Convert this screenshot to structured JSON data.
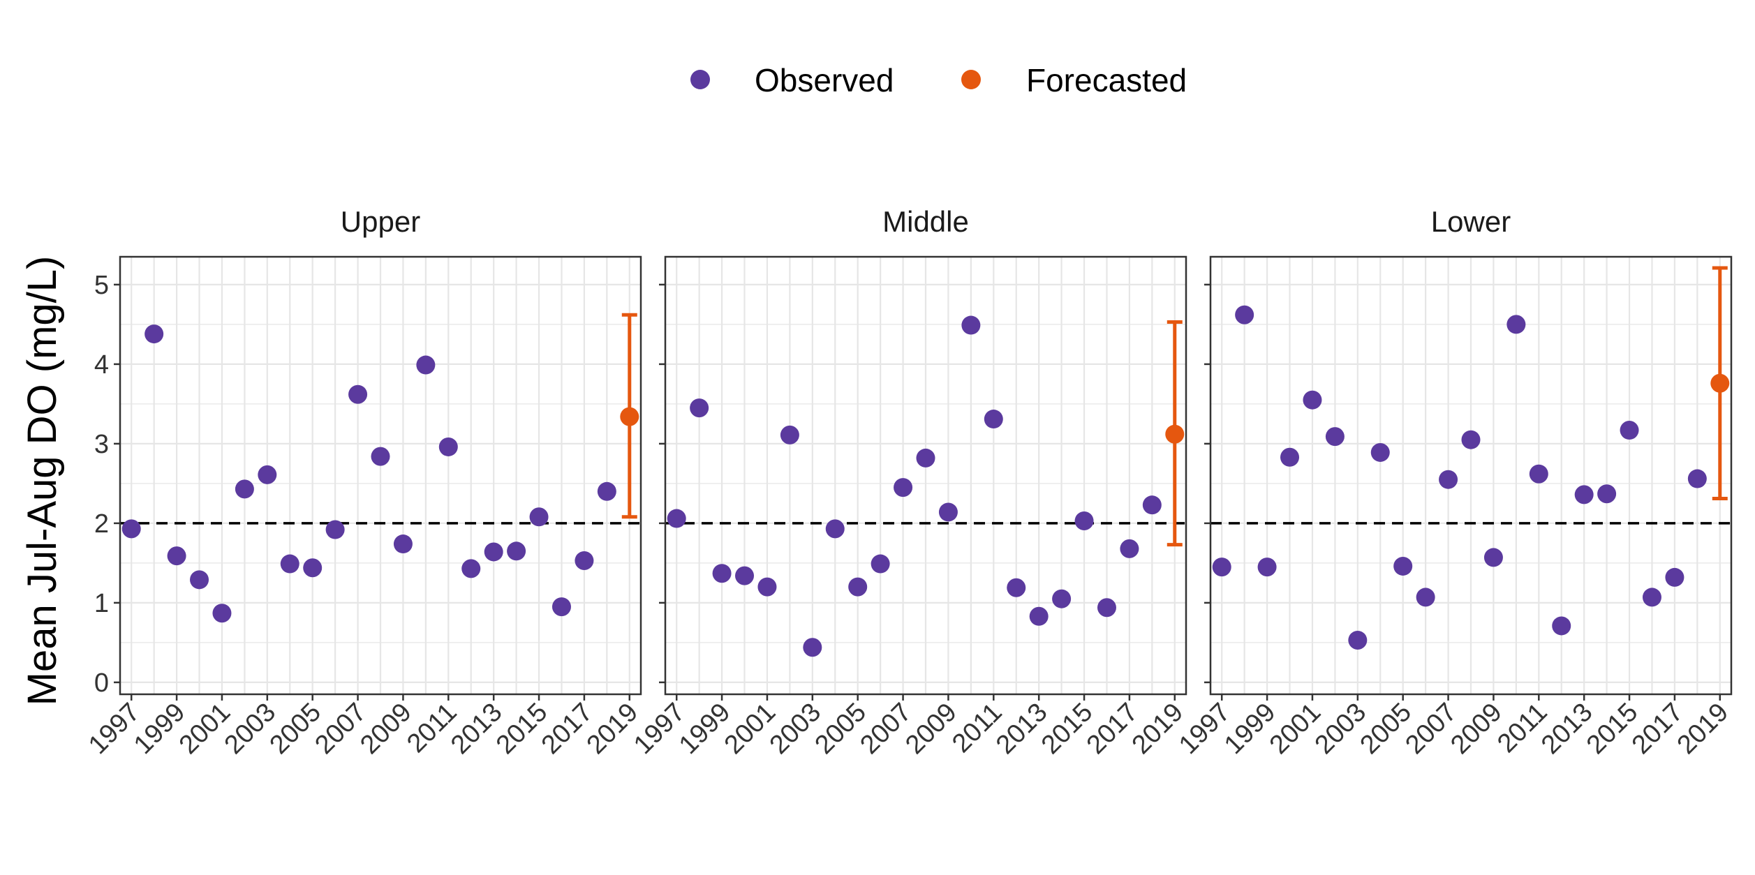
{
  "legend": {
    "observed_label": "Observed",
    "forecasted_label": "Forecasted"
  },
  "colors": {
    "observed": "#5b3a9e",
    "forecasted": "#e5570f",
    "threshold": "#000000",
    "grid": "#e6e6e6",
    "panel_border": "#333333"
  },
  "chart_data": {
    "type": "scatter",
    "ylabel": "Mean Jul-Aug DO (mg/L)",
    "xlabel": "",
    "ylim": [
      -0.15,
      5.35
    ],
    "y_ticks": [
      0,
      1,
      2,
      3,
      4,
      5
    ],
    "x_range": [
      1996.5,
      2019.5
    ],
    "x_tick_labels": [
      "1997",
      "1999",
      "2001",
      "2003",
      "2005",
      "2007",
      "2009",
      "2011",
      "2013",
      "2015",
      "2017",
      "2019"
    ],
    "threshold": 2,
    "grid": true,
    "legend_position": "top",
    "facets": [
      {
        "name": "Upper",
        "observed": {
          "x": [
            1997,
            1998,
            1999,
            2000,
            2001,
            2002,
            2003,
            2004,
            2005,
            2006,
            2007,
            2008,
            2009,
            2010,
            2011,
            2012,
            2013,
            2014,
            2015,
            2016,
            2017,
            2018
          ],
          "y": [
            1.93,
            4.38,
            1.59,
            1.29,
            0.87,
            2.43,
            2.61,
            1.49,
            1.44,
            1.92,
            3.62,
            2.84,
            1.74,
            3.99,
            2.96,
            1.43,
            1.64,
            1.65,
            2.08,
            0.95,
            1.53,
            2.4
          ]
        },
        "forecast": {
          "x": 2019,
          "y": 3.34,
          "lower": 2.08,
          "upper": 4.62
        }
      },
      {
        "name": "Middle",
        "observed": {
          "x": [
            1997,
            1998,
            1999,
            2000,
            2001,
            2002,
            2003,
            2004,
            2005,
            2006,
            2007,
            2008,
            2009,
            2010,
            2011,
            2012,
            2013,
            2014,
            2015,
            2016,
            2017,
            2018
          ],
          "y": [
            2.06,
            3.45,
            1.37,
            1.34,
            1.2,
            3.11,
            0.44,
            1.93,
            1.2,
            1.49,
            2.45,
            2.82,
            2.14,
            4.49,
            3.31,
            1.19,
            0.83,
            1.05,
            2.03,
            0.94,
            1.68,
            2.23
          ]
        },
        "forecast": {
          "x": 2019,
          "y": 3.12,
          "lower": 1.73,
          "upper": 4.53
        }
      },
      {
        "name": "Lower",
        "observed": {
          "x": [
            1997,
            1998,
            1999,
            2000,
            2001,
            2002,
            2003,
            2004,
            2005,
            2006,
            2007,
            2008,
            2009,
            2010,
            2011,
            2012,
            2013,
            2014,
            2015,
            2016,
            2017,
            2018
          ],
          "y": [
            1.45,
            4.62,
            1.45,
            2.83,
            3.55,
            3.09,
            0.53,
            2.89,
            1.46,
            1.07,
            2.55,
            3.05,
            1.57,
            4.5,
            2.62,
            0.71,
            2.36,
            2.37,
            3.17,
            1.07,
            1.32,
            2.56
          ]
        },
        "forecast": {
          "x": 2019,
          "y": 3.76,
          "lower": 2.31,
          "upper": 5.21
        }
      }
    ]
  }
}
